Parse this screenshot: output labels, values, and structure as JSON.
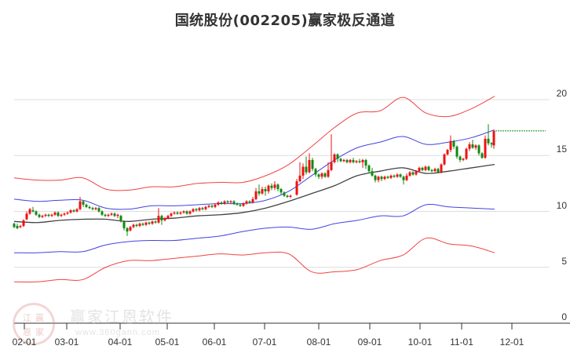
{
  "title": "国统股份(002205)赢家极反通道",
  "watermark": {
    "name": "赢家江恩软件",
    "url": "www.360gann.com",
    "logo_chars": [
      "江",
      "赢",
      "恩",
      "家"
    ]
  },
  "colors": {
    "outer_band": "#ee2222",
    "inner_band": "#2222dd",
    "ma_line": "#222222",
    "up_candle": "#ee1111",
    "down_candle": "#118811",
    "last_price_line": "#118811",
    "gridline": "#dddddd",
    "axis": "#333333"
  },
  "chart_data": {
    "type": "candlestick",
    "title": "国统股份(002205)赢家极反通道",
    "xlabel": "",
    "ylabel": "",
    "ylim": [
      0,
      20
    ],
    "y_ticks": [
      0,
      5,
      10,
      15,
      20
    ],
    "x_ticks": [
      "02-01",
      "03-01",
      "04-01",
      "05-01",
      "06-01",
      "07-01",
      "08-01",
      "09-01",
      "10-01",
      "11-01",
      "12-01"
    ],
    "grid": true,
    "legend": null,
    "last_price": 17.2,
    "series": [
      {
        "name": "upper_outer_band",
        "color": "red",
        "x": [
          "01-20",
          "02-01",
          "02-15",
          "03-01",
          "03-15",
          "04-01",
          "04-15",
          "05-01",
          "05-15",
          "06-01",
          "06-15",
          "07-01",
          "07-15",
          "08-01",
          "08-15",
          "09-01",
          "09-15",
          "10-01",
          "10-15",
          "11-01",
          "11-15",
          "11-25"
        ],
        "values": [
          13.0,
          12.8,
          12.8,
          13.0,
          12.0,
          11.9,
          12.2,
          12.2,
          12.5,
          12.6,
          12.6,
          13.2,
          14.2,
          15.8,
          17.5,
          18.8,
          19.0,
          20.2,
          18.8,
          18.5,
          19.2,
          20.3
        ]
      },
      {
        "name": "upper_inner_band",
        "color": "blue",
        "x": [
          "01-20",
          "02-01",
          "02-15",
          "03-01",
          "03-15",
          "04-01",
          "04-15",
          "05-01",
          "05-15",
          "06-01",
          "06-15",
          "07-01",
          "07-15",
          "08-01",
          "08-15",
          "09-01",
          "09-15",
          "10-01",
          "10-15",
          "11-01",
          "11-15",
          "11-25"
        ],
        "values": [
          11.1,
          10.9,
          11.0,
          11.0,
          10.3,
          10.2,
          10.5,
          10.5,
          10.6,
          10.7,
          10.7,
          11.0,
          11.8,
          13.2,
          14.6,
          15.7,
          16.2,
          16.7,
          16.0,
          16.2,
          16.6,
          17.3
        ]
      },
      {
        "name": "ma_midline",
        "color": "black",
        "x": [
          "01-20",
          "02-01",
          "02-15",
          "03-01",
          "03-15",
          "04-01",
          "04-15",
          "05-01",
          "05-15",
          "06-01",
          "06-15",
          "07-01",
          "07-15",
          "08-01",
          "08-15",
          "09-01",
          "09-15",
          "10-01",
          "10-15",
          "11-01",
          "11-15",
          "11-25"
        ],
        "values": [
          9.1,
          9.0,
          9.2,
          9.3,
          9.3,
          9.1,
          9.3,
          9.4,
          9.6,
          9.7,
          9.9,
          10.3,
          10.9,
          11.6,
          12.3,
          13.2,
          13.6,
          13.9,
          13.4,
          13.6,
          13.9,
          14.2
        ]
      },
      {
        "name": "lower_inner_band",
        "color": "blue",
        "x": [
          "01-20",
          "02-01",
          "02-15",
          "03-01",
          "03-15",
          "04-01",
          "04-15",
          "05-01",
          "05-15",
          "06-01",
          "06-15",
          "07-01",
          "07-15",
          "08-01",
          "08-15",
          "09-01",
          "09-15",
          "10-01",
          "10-15",
          "11-01",
          "11-15",
          "11-25"
        ],
        "values": [
          6.3,
          6.3,
          6.4,
          6.4,
          7.0,
          7.3,
          7.4,
          7.4,
          7.6,
          7.8,
          8.2,
          8.5,
          8.6,
          8.4,
          8.9,
          9.2,
          9.6,
          9.6,
          10.6,
          10.4,
          10.3,
          10.2
        ]
      },
      {
        "name": "lower_outer_band",
        "color": "red",
        "x": [
          "01-20",
          "02-01",
          "02-15",
          "03-01",
          "03-15",
          "04-01",
          "04-15",
          "05-01",
          "05-15",
          "06-01",
          "06-15",
          "07-01",
          "07-15",
          "08-01",
          "08-15",
          "09-01",
          "09-15",
          "10-01",
          "10-15",
          "11-01",
          "11-15",
          "11-25"
        ],
        "values": [
          3.7,
          3.7,
          3.9,
          3.9,
          5.0,
          5.6,
          5.6,
          5.8,
          6.0,
          6.2,
          6.1,
          6.3,
          6.2,
          4.6,
          4.6,
          4.8,
          5.6,
          6.1,
          7.6,
          7.1,
          6.9,
          6.3
        ]
      }
    ],
    "candles_note": "Daily OHLC candlesticks, price range ~7.8 to ~17.8; rises from ~8.5 (Jan) to ~16.5 (late Nov)",
    "candles": [
      [
        18,
        8.9,
        8.6,
        9.0,
        8.5
      ],
      [
        22,
        8.7,
        8.5,
        8.9,
        8.4
      ],
      [
        26,
        8.6,
        8.7,
        8.8,
        8.5
      ],
      [
        30,
        8.7,
        9.2,
        9.3,
        8.6
      ],
      [
        34,
        9.3,
        9.8,
        10.0,
        9.2
      ],
      [
        38,
        9.8,
        10.2,
        10.3,
        9.7
      ],
      [
        42,
        10.1,
        10.0,
        10.4,
        9.9
      ],
      [
        46,
        10.0,
        9.7,
        10.1,
        9.6
      ],
      [
        50,
        9.7,
        9.5,
        9.8,
        9.4
      ],
      [
        54,
        9.5,
        9.6,
        9.7,
        9.4
      ],
      [
        58,
        9.6,
        9.7,
        9.8,
        9.5
      ],
      [
        62,
        9.7,
        9.6,
        9.8,
        9.5
      ],
      [
        66,
        9.6,
        9.7,
        9.8,
        9.5
      ],
      [
        70,
        9.7,
        9.9,
        10.0,
        9.6
      ],
      [
        74,
        9.9,
        9.6,
        10.0,
        9.5
      ],
      [
        78,
        9.6,
        9.7,
        9.8,
        9.5
      ],
      [
        82,
        9.7,
        9.8,
        9.9,
        9.6
      ],
      [
        86,
        9.8,
        9.9,
        10.0,
        9.7
      ],
      [
        90,
        9.9,
        10.1,
        10.2,
        9.8
      ],
      [
        94,
        10.1,
        10.0,
        10.2,
        9.9
      ],
      [
        98,
        10.0,
        10.2,
        10.3,
        9.9
      ],
      [
        102,
        10.2,
        10.9,
        11.3,
        10.1
      ],
      [
        106,
        10.9,
        10.6,
        11.0,
        10.4
      ],
      [
        110,
        10.6,
        10.4,
        10.7,
        10.3
      ],
      [
        114,
        10.4,
        10.3,
        10.5,
        10.2
      ],
      [
        118,
        10.3,
        10.2,
        10.4,
        10.1
      ],
      [
        122,
        10.2,
        10.3,
        10.4,
        10.1
      ],
      [
        126,
        10.3,
        10.0,
        10.4,
        9.9
      ],
      [
        130,
        10.0,
        9.7,
        10.1,
        9.6
      ],
      [
        134,
        9.7,
        9.6,
        9.8,
        9.5
      ],
      [
        138,
        9.6,
        9.7,
        9.8,
        9.5
      ],
      [
        142,
        9.7,
        9.8,
        9.9,
        9.6
      ],
      [
        146,
        9.8,
        9.6,
        9.9,
        9.5
      ],
      [
        150,
        9.6,
        9.7,
        9.8,
        9.4
      ],
      [
        154,
        9.6,
        9.2,
        9.7,
        9.0
      ],
      [
        158,
        9.1,
        8.5,
        9.2,
        8.3
      ],
      [
        162,
        8.5,
        8.2,
        8.6,
        7.8
      ],
      [
        166,
        8.3,
        8.6,
        8.7,
        8.2
      ],
      [
        170,
        8.6,
        8.8,
        8.9,
        8.5
      ],
      [
        174,
        8.8,
        8.7,
        8.9,
        8.6
      ],
      [
        178,
        8.7,
        8.9,
        9.0,
        8.6
      ],
      [
        182,
        8.9,
        8.8,
        9.0,
        8.7
      ],
      [
        186,
        8.8,
        9.0,
        9.1,
        8.7
      ],
      [
        190,
        9.0,
        8.9,
        9.1,
        8.8
      ],
      [
        194,
        8.9,
        9.1,
        9.2,
        8.8
      ],
      [
        198,
        9.1,
        9.0,
        9.2,
        8.9
      ],
      [
        202,
        9.0,
        9.6,
        10.3,
        8.9
      ],
      [
        206,
        9.6,
        9.2,
        9.7,
        8.8
      ],
      [
        210,
        9.2,
        9.4,
        9.5,
        9.1
      ],
      [
        214,
        9.4,
        9.6,
        9.7,
        9.3
      ],
      [
        218,
        9.6,
        9.8,
        9.9,
        9.5
      ],
      [
        222,
        9.8,
        9.9,
        10.0,
        9.7
      ],
      [
        226,
        9.9,
        9.8,
        10.0,
        9.7
      ],
      [
        230,
        9.8,
        9.9,
        10.0,
        9.7
      ],
      [
        234,
        9.9,
        10.0,
        10.1,
        9.8
      ],
      [
        238,
        10.0,
        9.8,
        10.1,
        9.7
      ],
      [
        242,
        9.8,
        10.0,
        10.1,
        9.7
      ],
      [
        246,
        10.0,
        10.2,
        10.3,
        9.9
      ],
      [
        250,
        10.2,
        10.1,
        10.3,
        10.0
      ],
      [
        254,
        10.1,
        10.3,
        10.4,
        10.0
      ],
      [
        258,
        10.3,
        10.2,
        10.4,
        10.1
      ],
      [
        262,
        10.2,
        10.4,
        10.5,
        10.1
      ],
      [
        266,
        10.4,
        10.5,
        10.6,
        10.3
      ],
      [
        270,
        10.5,
        10.4,
        10.6,
        10.3
      ],
      [
        274,
        10.4,
        10.6,
        10.7,
        10.3
      ],
      [
        278,
        10.6,
        10.8,
        10.9,
        10.5
      ],
      [
        282,
        10.8,
        10.7,
        10.9,
        10.6
      ],
      [
        286,
        10.7,
        10.9,
        11.0,
        10.6
      ],
      [
        290,
        10.9,
        10.8,
        11.0,
        10.7
      ],
      [
        294,
        10.8,
        10.9,
        11.0,
        10.7
      ],
      [
        298,
        10.9,
        10.7,
        11.0,
        10.6
      ],
      [
        302,
        10.7,
        10.6,
        10.8,
        10.5
      ],
      [
        306,
        10.6,
        10.5,
        10.7,
        10.4
      ],
      [
        310,
        10.5,
        10.7,
        10.8,
        10.4
      ],
      [
        314,
        10.7,
        10.9,
        11.0,
        10.6
      ],
      [
        318,
        10.9,
        10.8,
        11.0,
        10.7
      ],
      [
        322,
        10.8,
        11.1,
        11.3,
        10.7
      ],
      [
        326,
        11.1,
        11.8,
        12.1,
        11.0
      ],
      [
        330,
        11.8,
        11.6,
        12.4,
        11.4
      ],
      [
        334,
        11.6,
        12.0,
        12.2,
        11.5
      ],
      [
        338,
        12.0,
        11.8,
        12.2,
        11.4
      ],
      [
        342,
        11.8,
        12.3,
        12.4,
        11.6
      ],
      [
        346,
        12.3,
        12.1,
        12.5,
        11.9
      ],
      [
        350,
        12.1,
        12.4,
        12.7,
        11.9
      ],
      [
        354,
        12.4,
        12.0,
        12.5,
        11.8
      ],
      [
        358,
        12.0,
        11.7,
        12.1,
        11.5
      ],
      [
        362,
        11.7,
        11.4,
        11.8,
        11.3
      ],
      [
        366,
        11.4,
        11.3,
        11.5,
        11.2
      ],
      [
        370,
        11.3,
        11.4,
        11.5,
        11.2
      ],
      [
        378,
        11.5,
        12.7,
        12.9,
        11.4
      ],
      [
        382,
        12.7,
        13.2,
        14.4,
        12.6
      ],
      [
        386,
        13.2,
        14.0,
        14.3,
        12.9
      ],
      [
        390,
        14.0,
        13.5,
        14.9,
        13.3
      ],
      [
        394,
        13.5,
        14.6,
        15.2,
        13.4
      ],
      [
        398,
        14.6,
        13.8,
        14.8,
        13.6
      ],
      [
        402,
        13.8,
        13.3,
        13.9,
        13.1
      ],
      [
        406,
        13.3,
        13.1,
        13.4,
        12.9
      ],
      [
        410,
        13.1,
        13.4,
        13.5,
        12.9
      ],
      [
        414,
        13.4,
        13.1,
        13.5,
        13.0
      ],
      [
        418,
        13.1,
        13.7,
        14.4,
        13.0
      ],
      [
        422,
        13.7,
        14.4,
        16.9,
        13.6
      ],
      [
        426,
        14.4,
        15.1,
        15.2,
        14.3
      ],
      [
        430,
        15.1,
        14.7,
        15.2,
        14.4
      ],
      [
        434,
        14.7,
        14.5,
        14.8,
        14.4
      ],
      [
        438,
        14.5,
        14.6,
        14.7,
        14.4
      ],
      [
        442,
        14.6,
        14.4,
        14.7,
        14.3
      ],
      [
        446,
        14.4,
        14.6,
        14.7,
        14.3
      ],
      [
        450,
        14.6,
        14.4,
        14.8,
        14.3
      ],
      [
        454,
        14.4,
        14.5,
        14.6,
        14.3
      ],
      [
        458,
        14.5,
        14.4,
        14.7,
        14.3
      ],
      [
        462,
        14.4,
        14.6,
        14.7,
        13.9
      ],
      [
        466,
        14.6,
        14.1,
        14.7,
        13.8
      ],
      [
        470,
        14.1,
        13.6,
        14.2,
        13.4
      ],
      [
        474,
        13.6,
        13.2,
        13.9,
        13.1
      ],
      [
        478,
        13.2,
        12.8,
        13.3,
        12.6
      ],
      [
        482,
        12.8,
        13.1,
        13.2,
        12.6
      ],
      [
        486,
        13.1,
        12.9,
        13.2,
        12.7
      ],
      [
        490,
        12.9,
        13.1,
        13.2,
        12.8
      ],
      [
        494,
        13.1,
        13.0,
        13.2,
        12.9
      ],
      [
        498,
        13.0,
        13.2,
        13.3,
        12.9
      ],
      [
        502,
        13.2,
        13.1,
        13.3,
        13.0
      ],
      [
        506,
        13.1,
        13.3,
        13.4,
        13.0
      ],
      [
        510,
        13.3,
        13.1,
        13.4,
        13.0
      ],
      [
        514,
        13.1,
        12.8,
        13.2,
        12.4
      ],
      [
        518,
        12.8,
        13.2,
        13.4,
        12.7
      ],
      [
        522,
        13.2,
        13.5,
        13.6,
        13.1
      ],
      [
        526,
        13.5,
        13.3,
        13.6,
        13.2
      ],
      [
        530,
        13.3,
        13.6,
        13.7,
        13.2
      ],
      [
        534,
        13.6,
        13.9,
        14.0,
        13.5
      ],
      [
        538,
        13.9,
        13.7,
        14.0,
        13.6
      ],
      [
        542,
        13.7,
        14.0,
        14.1,
        13.6
      ],
      [
        546,
        14.0,
        13.7,
        14.1,
        13.6
      ],
      [
        550,
        13.7,
        13.6,
        13.8,
        13.5
      ],
      [
        554,
        13.6,
        13.8,
        13.9,
        13.5
      ],
      [
        558,
        13.8,
        13.5,
        13.9,
        13.4
      ],
      [
        562,
        13.5,
        14.2,
        14.3,
        13.4
      ],
      [
        566,
        14.2,
        15.1,
        15.2,
        14.1
      ],
      [
        570,
        15.1,
        15.5,
        15.6,
        15.0
      ],
      [
        574,
        15.5,
        16.3,
        16.8,
        15.3
      ],
      [
        578,
        16.3,
        15.8,
        16.4,
        15.6
      ],
      [
        582,
        15.8,
        14.9,
        15.9,
        14.7
      ],
      [
        586,
        14.9,
        14.6,
        15.0,
        14.4
      ],
      [
        590,
        14.6,
        14.7,
        14.8,
        14.5
      ],
      [
        594,
        14.7,
        15.6,
        15.7,
        14.6
      ],
      [
        598,
        15.6,
        16.0,
        16.2,
        15.4
      ],
      [
        602,
        16.0,
        15.7,
        16.4,
        15.6
      ],
      [
        606,
        15.7,
        15.9,
        16.0,
        15.5
      ],
      [
        610,
        15.9,
        15.2,
        16.0,
        15.0
      ],
      [
        614,
        15.2,
        14.8,
        15.3,
        14.7
      ],
      [
        618,
        14.8,
        16.5,
        16.8,
        14.7
      ],
      [
        622,
        16.5,
        16.1,
        17.8,
        15.9
      ],
      [
        626,
        16.1,
        16.0,
        16.2,
        15.7
      ],
      [
        629,
        15.9,
        17.2,
        17.3,
        15.6
      ]
    ]
  }
}
